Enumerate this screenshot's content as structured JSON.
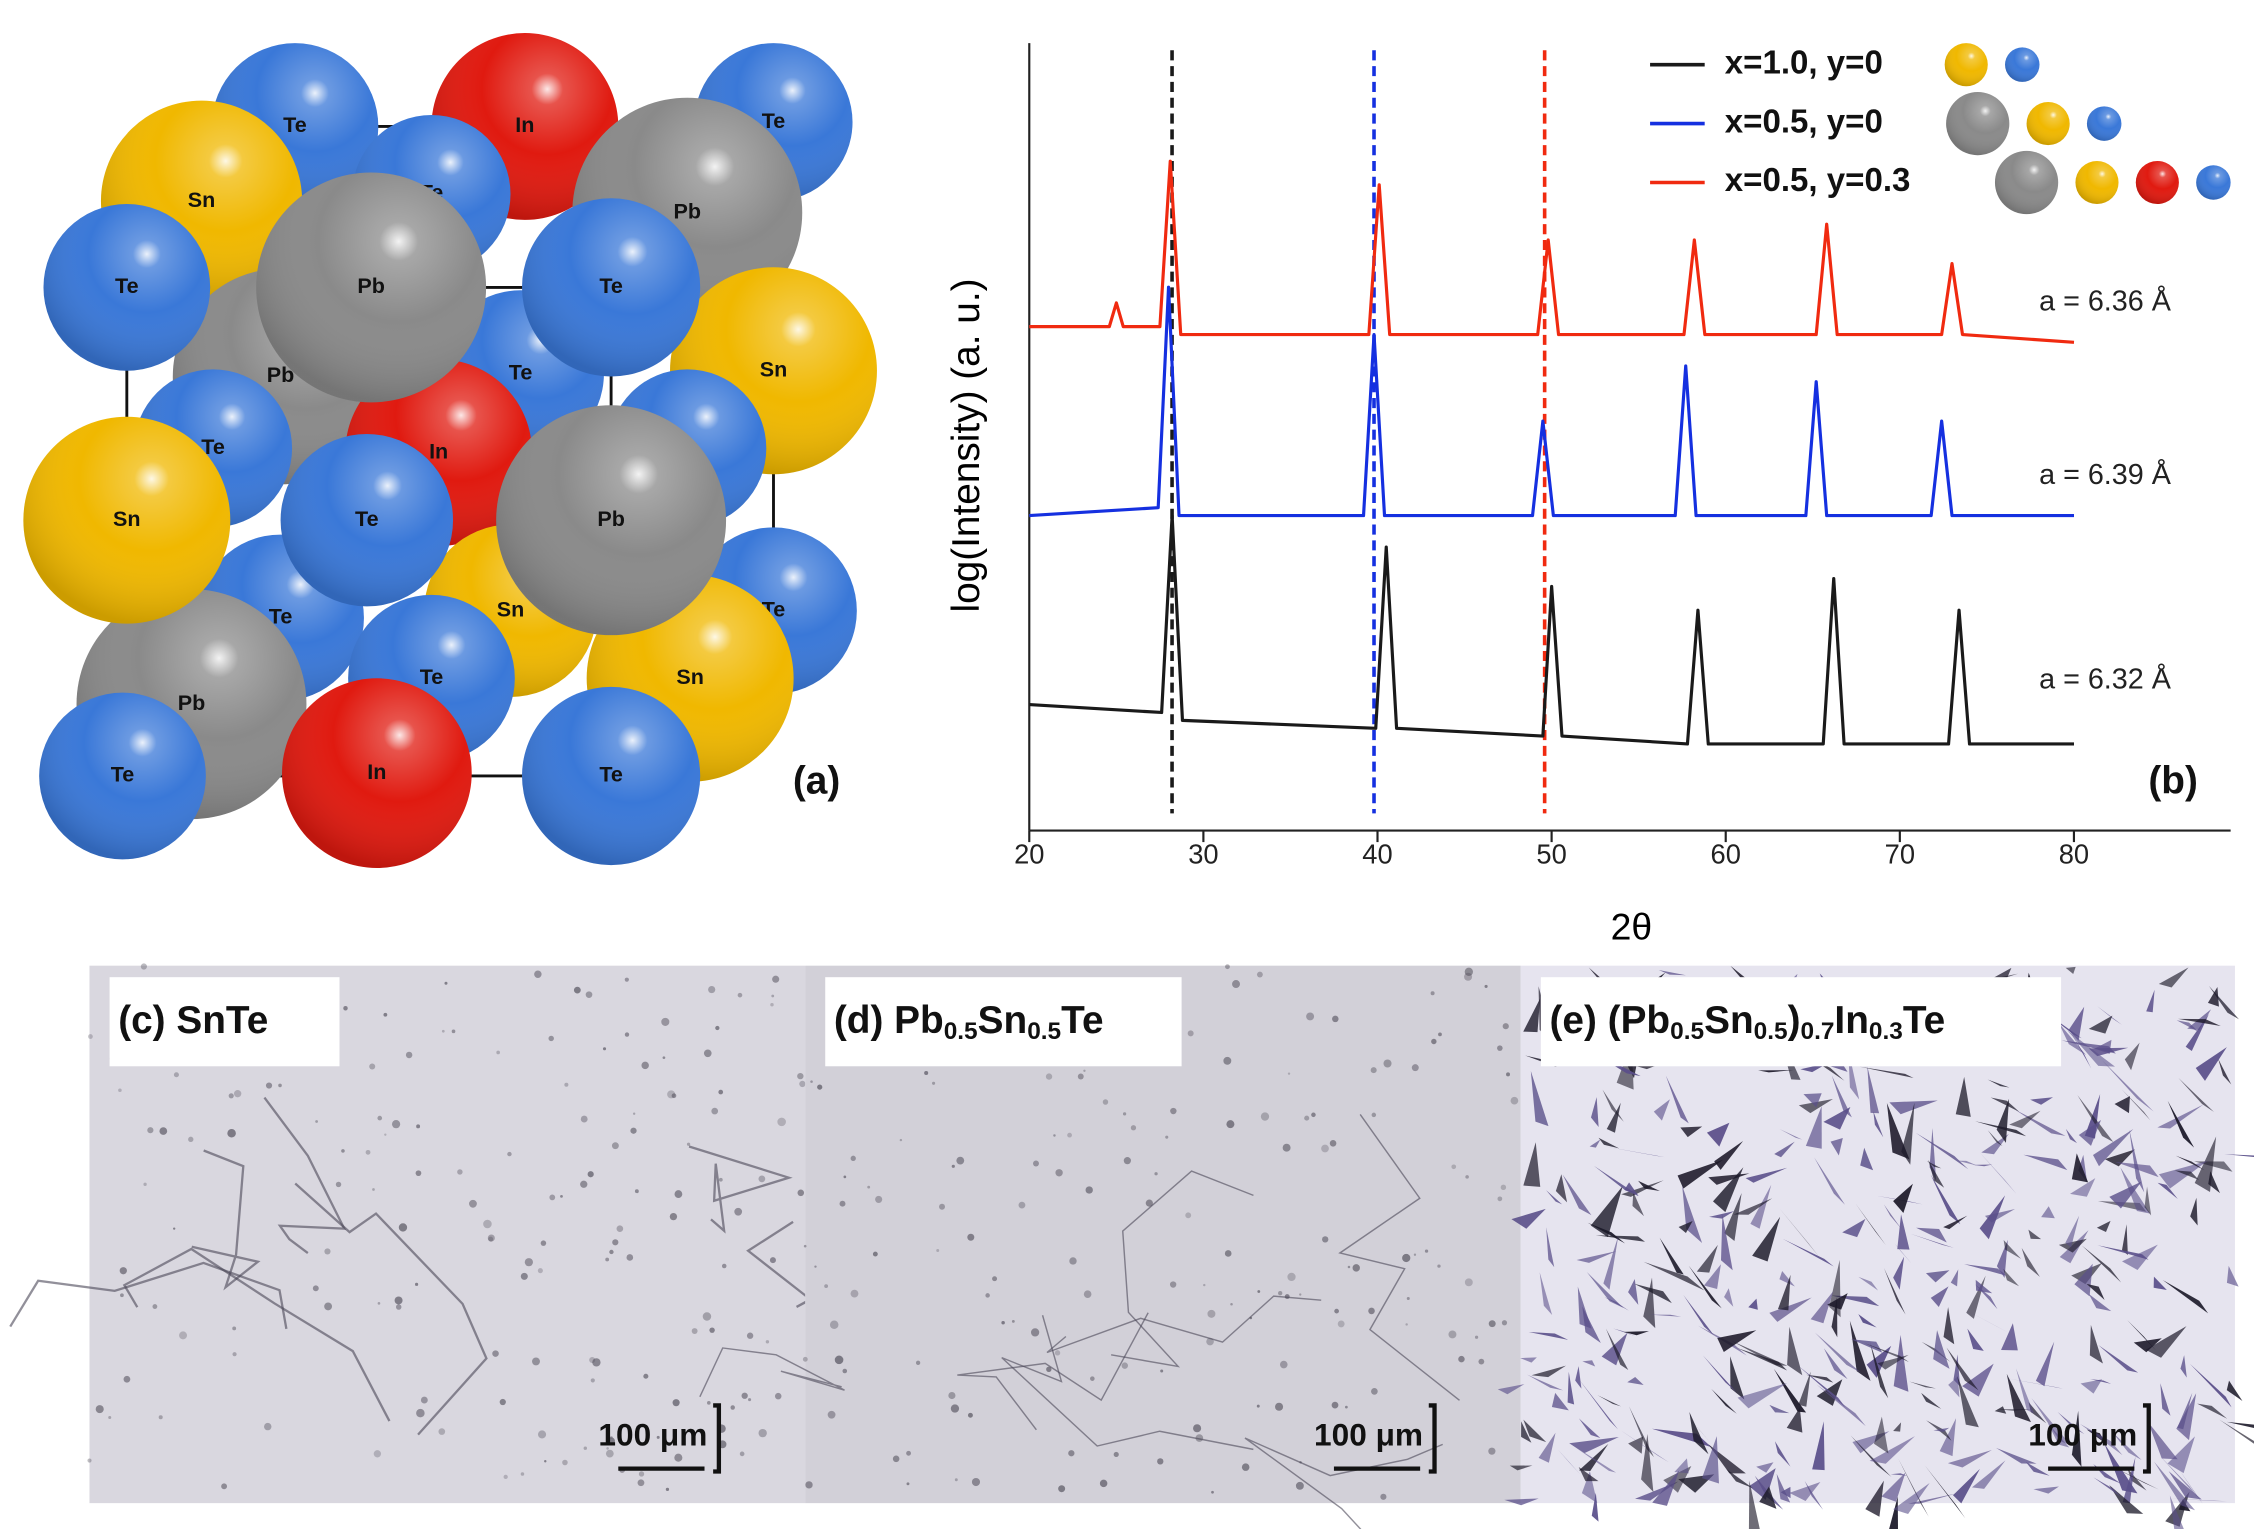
{
  "crystal": {
    "panel_label": "(a)",
    "element_colors": {
      "Te": "#3a78d8",
      "Sn": "#f0b800",
      "Pb": "#8a8a8a",
      "In": "#e01a10"
    },
    "atoms": [
      "Te",
      "In",
      "Te",
      "Sn",
      "Te",
      "Pb",
      "Sn",
      "Pb",
      "Te",
      "Te",
      "In",
      "Te",
      "Te",
      "Te",
      "Sn",
      "Sn",
      "Pb",
      "Te",
      "Te",
      "Pb",
      "Te",
      "Sn",
      "Te",
      "Pb",
      "In",
      "Te",
      "Te"
    ]
  },
  "chart_data": {
    "type": "line",
    "panel_label": "(b)",
    "xlabel": "2θ",
    "ylabel": "log(Intensity)  (a. u.)",
    "xlim": [
      20,
      89
    ],
    "ylim": [
      0,
      100
    ],
    "xticks": [
      20,
      30,
      40,
      50,
      60,
      70,
      80
    ],
    "legend": "upper right",
    "series": [
      {
        "name": "x=1.0, y=0",
        "color": "#1a1a1a",
        "legend_atoms": [
          "Sn",
          "Te"
        ],
        "x": [
          20,
          27.6,
          28.2,
          28.8,
          39.9,
          40.5,
          41.1,
          49.5,
          50.0,
          50.6,
          57.8,
          58.4,
          59.0,
          65.6,
          66.2,
          66.8,
          72.8,
          73.4,
          74.0,
          80
        ],
        "values": [
          16,
          15,
          40,
          14,
          13,
          36,
          13,
          12,
          31,
          12,
          11,
          28,
          11,
          11,
          32,
          11,
          11,
          28,
          11,
          11
        ]
      },
      {
        "name": "x=0.5, y=0",
        "color": "#1530e0",
        "legend_atoms": [
          "Pb",
          "Sn",
          "Te"
        ],
        "x": [
          20,
          27.4,
          28.0,
          28.6,
          39.2,
          39.8,
          40.4,
          48.9,
          49.5,
          50.1,
          57.1,
          57.7,
          58.3,
          64.6,
          65.2,
          65.8,
          71.8,
          72.4,
          73.0,
          80
        ],
        "values": [
          40,
          41,
          69,
          40,
          40,
          63,
          40,
          40,
          52,
          40,
          40,
          59,
          40,
          40,
          57,
          40,
          40,
          52,
          40,
          40
        ]
      },
      {
        "name": "x=0.5, y=0.3",
        "color": "#f02a10",
        "legend_atoms": [
          "Pb",
          "Sn",
          "In",
          "Te"
        ],
        "x": [
          20,
          24.6,
          25.0,
          25.4,
          27.5,
          28.1,
          28.7,
          39.5,
          40.1,
          40.7,
          49.2,
          49.8,
          50.4,
          57.6,
          58.2,
          58.8,
          65.2,
          65.8,
          66.4,
          72.4,
          73.0,
          73.6,
          80
        ],
        "values": [
          64,
          64,
          67,
          64,
          64,
          85,
          63,
          63,
          82,
          63,
          63,
          75,
          63,
          63,
          75,
          63,
          63,
          77,
          63,
          63,
          72,
          63,
          62
        ]
      }
    ],
    "reference_lines": [
      {
        "x": 28.2,
        "color": "#1a1a1a"
      },
      {
        "x": 39.8,
        "color": "#1530e0"
      },
      {
        "x": 49.6,
        "color": "#f02a10"
      }
    ],
    "annotations": [
      {
        "text": "a = 6.36 Å",
        "x": 78,
        "y": 67
      },
      {
        "text": "a = 6.39 Å",
        "x": 78,
        "y": 45
      },
      {
        "text": "a = 6.32 Å",
        "x": 78,
        "y": 19
      }
    ]
  },
  "micrographs": [
    {
      "label_parts": [
        "(c) SnTe"
      ],
      "scale_bar": "100 μm"
    },
    {
      "label_parts": [
        "(d) Pb",
        "0.5",
        "Sn",
        "0.5",
        "Te"
      ],
      "scale_bar": "100 μm"
    },
    {
      "label_parts": [
        "(e) (Pb",
        "0.5",
        "Sn",
        "0.5",
        ")",
        "0.7",
        "In",
        "0.3",
        "Te"
      ],
      "scale_bar": "100 μm"
    }
  ]
}
